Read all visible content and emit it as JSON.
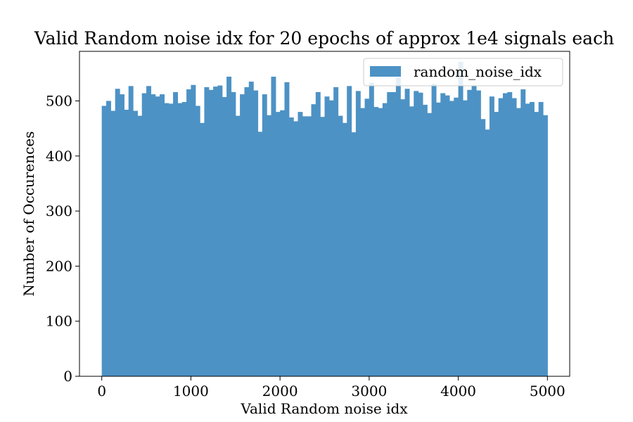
{
  "chart_data": {
    "type": "bar",
    "title": "Valid Random noise idx for 20 epochs of approx 1e4 signals each",
    "xlabel": "Valid Random noise idx",
    "ylabel": "Number of Occurences",
    "xlim": [
      -250,
      5250
    ],
    "ylim": [
      0,
      590
    ],
    "x_ticks": [
      0,
      1000,
      2000,
      3000,
      4000,
      5000
    ],
    "y_ticks": [
      0,
      100,
      200,
      300,
      400,
      500
    ],
    "legend_position": "top-right",
    "bar_color": "#4d92c5",
    "bin_start": 0,
    "bin_end": 5000,
    "series": [
      {
        "name": "random_noise_idx",
        "values": [
          491,
          500,
          482,
          522,
          512,
          484,
          527,
          482,
          473,
          514,
          527,
          512,
          508,
          512,
          496,
          495,
          516,
          496,
          498,
          521,
          529,
          491,
          460,
          525,
          520,
          526,
          528,
          507,
          544,
          516,
          473,
          512,
          525,
          535,
          519,
          444,
          512,
          474,
          544,
          480,
          483,
          534,
          470,
          463,
          480,
          472,
          472,
          494,
          516,
          471,
          508,
          501,
          525,
          473,
          460,
          527,
          443,
          518,
          487,
          504,
          533,
          489,
          487,
          496,
          516,
          516,
          543,
          503,
          522,
          490,
          518,
          515,
          493,
          478,
          531,
          497,
          514,
          510,
          500,
          506,
          571,
          501,
          520,
          527,
          519,
          467,
          448,
          508,
          480,
          505,
          514,
          516,
          505,
          487,
          521,
          495,
          498,
          480,
          498,
          474
        ]
      }
    ]
  }
}
